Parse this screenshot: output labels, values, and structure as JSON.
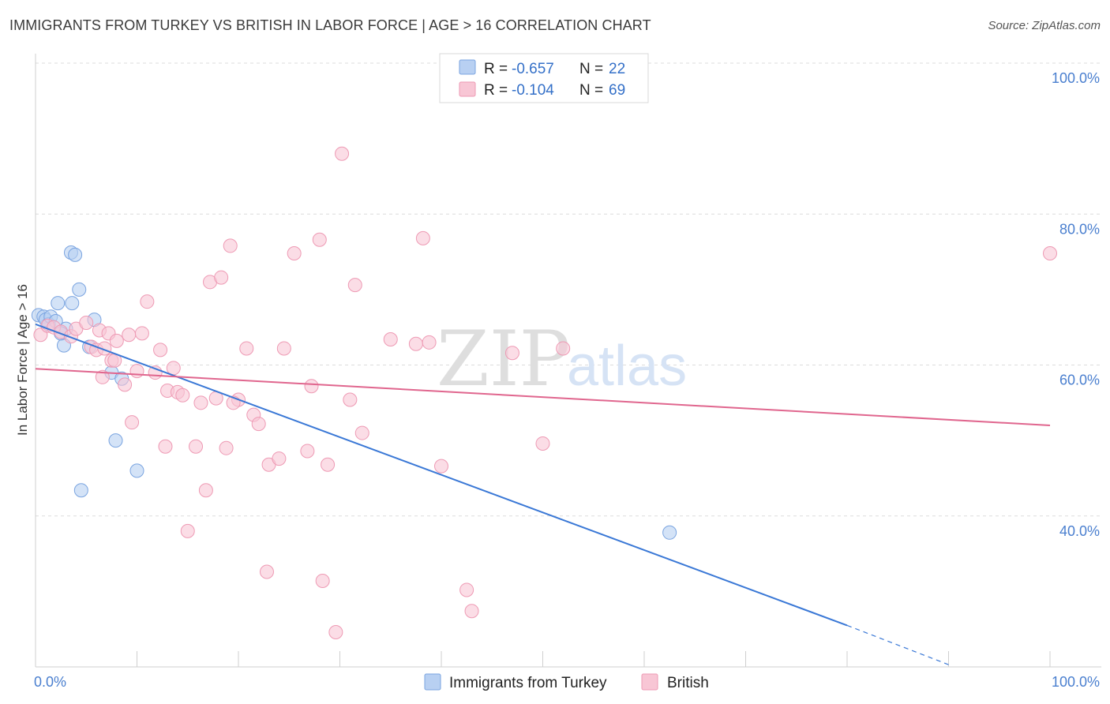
{
  "title": "IMMIGRANTS FROM TURKEY VS BRITISH IN LABOR FORCE | AGE > 16 CORRELATION CHART",
  "source": "Source: ZipAtlas.com",
  "colors": {
    "blue_fill": "#b8d0f2",
    "blue_stroke": "#7aa4e0",
    "blue_line": "#3a78d6",
    "pink_fill": "#f8c6d5",
    "pink_stroke": "#ee9ab4",
    "pink_line": "#e0668e",
    "axis_label": "#4a7fcf",
    "grid": "#dcdcdc"
  },
  "legend": {
    "rows": [
      {
        "r_label": "R = ",
        "r_value": "-0.657",
        "n_label": "N = ",
        "n_value": "22"
      },
      {
        "r_label": "R = ",
        "r_value": "-0.104",
        "n_label": "N = ",
        "n_value": "69"
      }
    ]
  },
  "watermark": {
    "zip": "ZIP",
    "atlas": "atlas"
  },
  "chart_data": {
    "type": "scatter",
    "title": "IMMIGRANTS FROM TURKEY VS BRITISH IN LABOR FORCE | AGE > 16 CORRELATION CHART",
    "xlabel": "",
    "ylabel": "In Labor Force | Age > 16",
    "xlim": [
      0,
      100
    ],
    "ylim": [
      20,
      100
    ],
    "x_tick_labels": [
      "0.0%",
      "100.0%"
    ],
    "y_ticks": [
      40,
      60,
      80,
      100
    ],
    "y_tick_labels": [
      "40.0%",
      "60.0%",
      "80.0%",
      "100.0%"
    ],
    "grid": true,
    "legend_position": "top-center",
    "series": [
      {
        "name": "Immigrants from Turkey",
        "color": "#b8d0f2",
        "points": [
          [
            0.3,
            66.6
          ],
          [
            0.8,
            66.4
          ],
          [
            1.0,
            66.0
          ],
          [
            1.3,
            65.4
          ],
          [
            1.5,
            66.4
          ],
          [
            2.0,
            65.8
          ],
          [
            2.2,
            68.2
          ],
          [
            2.8,
            62.6
          ],
          [
            3.0,
            64.8
          ],
          [
            3.5,
            74.9
          ],
          [
            3.6,
            68.2
          ],
          [
            3.9,
            74.6
          ],
          [
            4.3,
            70.0
          ],
          [
            4.5,
            43.4
          ],
          [
            5.3,
            62.4
          ],
          [
            5.8,
            66.0
          ],
          [
            7.5,
            59.0
          ],
          [
            7.9,
            50.0
          ],
          [
            8.5,
            58.2
          ],
          [
            10.0,
            46.0
          ],
          [
            2.5,
            64.2
          ],
          [
            62.5,
            37.8
          ]
        ],
        "trend": {
          "x": [
            0,
            80
          ],
          "y": [
            65.4,
            25.5
          ]
        },
        "trend_dashed": {
          "x": [
            80,
            90
          ],
          "y": [
            25.5,
            20.3
          ]
        }
      },
      {
        "name": "British",
        "color": "#f8c6d5",
        "points": [
          [
            0.5,
            64.0
          ],
          [
            1.2,
            65.2
          ],
          [
            1.8,
            65.0
          ],
          [
            2.5,
            64.4
          ],
          [
            3.5,
            63.8
          ],
          [
            4.0,
            64.8
          ],
          [
            5.0,
            65.6
          ],
          [
            5.5,
            62.4
          ],
          [
            6.0,
            62.0
          ],
          [
            6.3,
            64.6
          ],
          [
            6.6,
            58.4
          ],
          [
            7.2,
            64.2
          ],
          [
            7.5,
            60.6
          ],
          [
            7.8,
            60.6
          ],
          [
            8.0,
            63.2
          ],
          [
            8.8,
            57.4
          ],
          [
            9.2,
            64.0
          ],
          [
            9.5,
            52.4
          ],
          [
            10.0,
            59.2
          ],
          [
            10.5,
            64.2
          ],
          [
            11.0,
            68.4
          ],
          [
            11.8,
            59.0
          ],
          [
            12.3,
            62.0
          ],
          [
            12.8,
            49.2
          ],
          [
            13.0,
            56.6
          ],
          [
            13.6,
            59.6
          ],
          [
            14.0,
            56.4
          ],
          [
            14.5,
            56.0
          ],
          [
            15.0,
            38.0
          ],
          [
            15.8,
            49.2
          ],
          [
            16.3,
            55.0
          ],
          [
            16.8,
            43.4
          ],
          [
            17.2,
            71.0
          ],
          [
            17.8,
            55.6
          ],
          [
            18.3,
            71.6
          ],
          [
            18.8,
            49.0
          ],
          [
            19.2,
            75.8
          ],
          [
            20.0,
            55.4
          ],
          [
            20.8,
            62.2
          ],
          [
            21.5,
            53.4
          ],
          [
            22.0,
            52.2
          ],
          [
            22.8,
            32.6
          ],
          [
            23.0,
            46.8
          ],
          [
            24.0,
            47.6
          ],
          [
            24.5,
            62.2
          ],
          [
            25.5,
            74.8
          ],
          [
            26.8,
            48.6
          ],
          [
            27.2,
            57.2
          ],
          [
            28.0,
            76.6
          ],
          [
            28.3,
            31.4
          ],
          [
            28.8,
            46.8
          ],
          [
            29.6,
            24.6
          ],
          [
            30.2,
            88.0
          ],
          [
            31.0,
            55.4
          ],
          [
            31.5,
            70.6
          ],
          [
            32.2,
            51.0
          ],
          [
            35.0,
            63.4
          ],
          [
            37.5,
            62.8
          ],
          [
            38.2,
            76.8
          ],
          [
            38.8,
            63.0
          ],
          [
            40.0,
            46.6
          ],
          [
            42.5,
            30.2
          ],
          [
            43.0,
            27.4
          ],
          [
            47.0,
            61.6
          ],
          [
            50.0,
            49.6
          ],
          [
            52.0,
            62.2
          ],
          [
            100.0,
            74.8
          ],
          [
            6.8,
            62.2
          ],
          [
            19.5,
            55.0
          ]
        ],
        "trend": {
          "x": [
            0,
            100
          ],
          "y": [
            59.5,
            52.0
          ]
        }
      }
    ]
  }
}
